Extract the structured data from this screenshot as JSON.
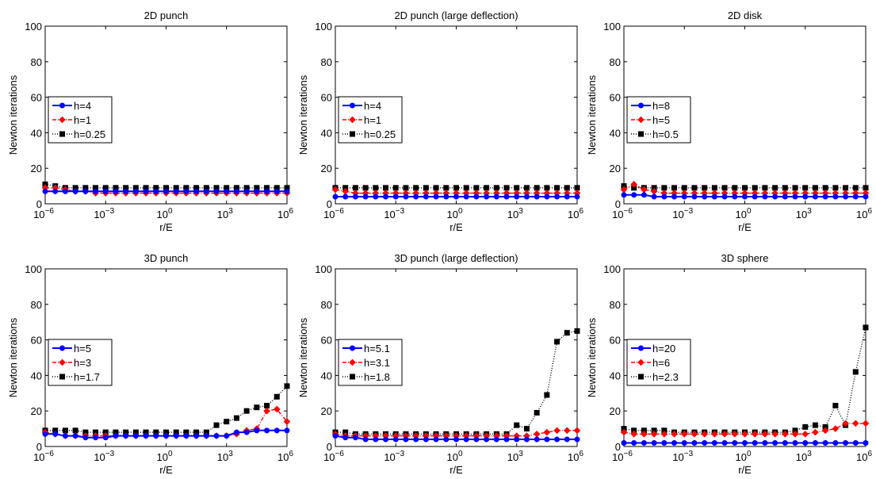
{
  "figure": {
    "background": "#ffffff",
    "series_styles": [
      {
        "color": "#0000ff",
        "marker": "circle",
        "line": "solid"
      },
      {
        "color": "#ff0000",
        "marker": "diamond",
        "line": "dashdot"
      },
      {
        "color": "#000000",
        "marker": "square",
        "line": "dotted"
      }
    ]
  },
  "chart_data": [
    {
      "type": "line",
      "title": "2D punch",
      "xlabel": "r/E",
      "ylabel": "Newton iterations",
      "xscale": "log",
      "xlim": [
        1e-06,
        1000000.0
      ],
      "ylim": [
        0,
        100
      ],
      "yticks": [
        "0",
        "20",
        "40",
        "60",
        "80",
        "100"
      ],
      "xticks": [
        {
          "base": "10",
          "exp": "−6"
        },
        {
          "base": "10",
          "exp": "−3"
        },
        {
          "base": "10",
          "exp": "0"
        },
        {
          "base": "10",
          "exp": "3"
        },
        {
          "base": "10",
          "exp": "6"
        }
      ],
      "legend": "left",
      "x": [
        1e-06,
        3.16e-06,
        1e-05,
        3.16e-05,
        0.0001,
        0.000316,
        0.001,
        0.00316,
        0.01,
        0.0316,
        0.1,
        0.316,
        1,
        3.16,
        10,
        31.6,
        100,
        316,
        1000,
        3160,
        10000.0,
        31600.0,
        100000.0,
        316000.0,
        1000000.0
      ],
      "series": [
        {
          "name": "h=4",
          "values": [
            7,
            7,
            7,
            7,
            7,
            7,
            7,
            7,
            7,
            7,
            7,
            7,
            7,
            7,
            7,
            7,
            7,
            7,
            7,
            7,
            7,
            7,
            7,
            7,
            7
          ]
        },
        {
          "name": "h=1",
          "values": [
            9,
            9,
            8,
            7,
            7,
            6,
            6,
            6,
            6,
            6,
            6,
            6,
            6,
            6,
            6,
            6,
            6,
            6,
            6,
            6,
            6,
            6,
            6,
            6,
            6
          ]
        },
        {
          "name": "h=0.25",
          "values": [
            11,
            10,
            9,
            9,
            9,
            9,
            9,
            9,
            9,
            9,
            9,
            9,
            9,
            9,
            9,
            9,
            9,
            9,
            9,
            9,
            9,
            9,
            9,
            9,
            9
          ]
        }
      ]
    },
    {
      "type": "line",
      "title": "2D punch (large deflection)",
      "xlabel": "r/E",
      "ylabel": "Newton iterations",
      "xscale": "log",
      "xlim": [
        1e-06,
        1000000.0
      ],
      "ylim": [
        0,
        100
      ],
      "yticks": [
        "0",
        "20",
        "40",
        "60",
        "80",
        "100"
      ],
      "xticks": [
        {
          "base": "10",
          "exp": "−6"
        },
        {
          "base": "10",
          "exp": "−3"
        },
        {
          "base": "10",
          "exp": "0"
        },
        {
          "base": "10",
          "exp": "3"
        },
        {
          "base": "10",
          "exp": "6"
        }
      ],
      "legend": "left",
      "x": [
        1e-06,
        3.16e-06,
        1e-05,
        3.16e-05,
        0.0001,
        0.000316,
        0.001,
        0.00316,
        0.01,
        0.0316,
        0.1,
        0.316,
        1,
        3.16,
        10,
        31.6,
        100,
        316,
        1000,
        3160,
        10000.0,
        31600.0,
        100000.0,
        316000.0,
        1000000.0
      ],
      "series": [
        {
          "name": "h=4",
          "values": [
            4,
            4,
            4,
            4,
            4,
            4,
            4,
            4,
            4,
            4,
            4,
            4,
            4,
            4,
            4,
            4,
            4,
            4,
            4,
            4,
            4,
            4,
            4,
            4,
            4
          ]
        },
        {
          "name": "h=1",
          "values": [
            8,
            7,
            6,
            6,
            6,
            6,
            6,
            6,
            6,
            6,
            6,
            6,
            6,
            6,
            6,
            6,
            6,
            6,
            6,
            6,
            6,
            6,
            6,
            6,
            6
          ]
        },
        {
          "name": "h=0.25",
          "values": [
            9,
            9,
            9,
            9,
            9,
            9,
            9,
            9,
            9,
            9,
            9,
            9,
            9,
            9,
            9,
            9,
            9,
            9,
            9,
            9,
            9,
            9,
            9,
            9,
            9
          ]
        }
      ]
    },
    {
      "type": "line",
      "title": "2D disk",
      "xlabel": "r/E",
      "ylabel": "Newton iterations",
      "xscale": "log",
      "xlim": [
        1e-06,
        1000000.0
      ],
      "ylim": [
        0,
        100
      ],
      "yticks": [
        "0",
        "20",
        "40",
        "60",
        "80",
        "100"
      ],
      "xticks": [
        {
          "base": "10",
          "exp": "−6"
        },
        {
          "base": "10",
          "exp": "−3"
        },
        {
          "base": "10",
          "exp": "0"
        },
        {
          "base": "10",
          "exp": "3"
        },
        {
          "base": "10",
          "exp": "6"
        }
      ],
      "legend": "left",
      "x": [
        1e-06,
        3.16e-06,
        1e-05,
        3.16e-05,
        0.0001,
        0.000316,
        0.001,
        0.00316,
        0.01,
        0.0316,
        0.1,
        0.316,
        1,
        3.16,
        10,
        31.6,
        100,
        316,
        1000,
        3160,
        10000.0,
        31600.0,
        100000.0,
        316000.0,
        1000000.0
      ],
      "series": [
        {
          "name": "h=8",
          "values": [
            5,
            5,
            5,
            4,
            4,
            4,
            4,
            4,
            4,
            4,
            4,
            4,
            4,
            4,
            4,
            4,
            4,
            4,
            4,
            4,
            4,
            4,
            4,
            4,
            4
          ]
        },
        {
          "name": "h=5",
          "values": [
            8,
            11,
            8,
            7,
            6,
            6,
            6,
            6,
            6,
            6,
            6,
            6,
            6,
            6,
            6,
            6,
            6,
            6,
            6,
            6,
            6,
            6,
            6,
            6,
            6
          ]
        },
        {
          "name": "h=0.5",
          "values": [
            10,
            9,
            9,
            9,
            9,
            9,
            9,
            9,
            9,
            9,
            9,
            9,
            9,
            9,
            9,
            9,
            9,
            9,
            9,
            9,
            9,
            9,
            9,
            9,
            9
          ]
        }
      ]
    },
    {
      "type": "line",
      "title": "3D punch",
      "xlabel": "r/E",
      "ylabel": "Newton iterations",
      "xscale": "log",
      "xlim": [
        1e-06,
        1000000.0
      ],
      "ylim": [
        0,
        100
      ],
      "yticks": [
        "0",
        "20",
        "40",
        "60",
        "80",
        "100"
      ],
      "xticks": [
        {
          "base": "10",
          "exp": "−6"
        },
        {
          "base": "10",
          "exp": "−3"
        },
        {
          "base": "10",
          "exp": "0"
        },
        {
          "base": "10",
          "exp": "3"
        },
        {
          "base": "10",
          "exp": "6"
        }
      ],
      "legend": "left",
      "x": [
        1e-06,
        3.16e-06,
        1e-05,
        3.16e-05,
        0.0001,
        0.000316,
        0.001,
        0.00316,
        0.01,
        0.0316,
        0.1,
        0.316,
        1,
        3.16,
        10,
        31.6,
        100,
        316,
        1000,
        3160,
        10000.0,
        31600.0,
        100000.0,
        316000.0,
        1000000.0
      ],
      "series": [
        {
          "name": "h=5",
          "values": [
            7,
            7,
            6,
            6,
            5,
            5,
            5,
            6,
            6,
            6,
            6,
            6,
            6,
            6,
            6,
            6,
            6,
            6,
            6,
            8,
            8,
            9,
            9,
            9,
            9
          ]
        },
        {
          "name": "h=3",
          "values": [
            8,
            7,
            6,
            6,
            6,
            6,
            6,
            6,
            6,
            6,
            6,
            6,
            6,
            6,
            6,
            6,
            6,
            6,
            6,
            7,
            9,
            10,
            20,
            21,
            14
          ]
        },
        {
          "name": "h=1.7",
          "values": [
            9,
            9,
            9,
            9,
            8,
            8,
            8,
            8,
            8,
            8,
            8,
            8,
            8,
            8,
            8,
            8,
            8,
            12,
            14,
            16,
            20,
            22,
            23,
            28,
            34
          ]
        }
      ]
    },
    {
      "type": "line",
      "title": "3D punch (large deflection)",
      "xlabel": "r/E",
      "ylabel": "Newton iterations",
      "xscale": "log",
      "xlim": [
        1e-06,
        1000000.0
      ],
      "ylim": [
        0,
        100
      ],
      "yticks": [
        "0",
        "20",
        "40",
        "60",
        "80",
        "100"
      ],
      "xticks": [
        {
          "base": "10",
          "exp": "−6"
        },
        {
          "base": "10",
          "exp": "−3"
        },
        {
          "base": "10",
          "exp": "0"
        },
        {
          "base": "10",
          "exp": "3"
        },
        {
          "base": "10",
          "exp": "6"
        }
      ],
      "legend": "left",
      "x": [
        1e-06,
        3.16e-06,
        1e-05,
        3.16e-05,
        0.0001,
        0.000316,
        0.001,
        0.00316,
        0.01,
        0.0316,
        0.1,
        0.316,
        1,
        3.16,
        10,
        31.6,
        100,
        316,
        1000,
        3160,
        10000.0,
        31600.0,
        100000.0,
        316000.0,
        1000000.0
      ],
      "series": [
        {
          "name": "h=5.1",
          "values": [
            6,
            5,
            5,
            4,
            4,
            4,
            4,
            4,
            4,
            4,
            4,
            4,
            4,
            4,
            4,
            4,
            4,
            4,
            4,
            4,
            4,
            4,
            4,
            4,
            4
          ]
        },
        {
          "name": "h=3.1",
          "values": [
            7,
            6,
            6,
            6,
            6,
            6,
            6,
            6,
            6,
            6,
            6,
            6,
            6,
            6,
            6,
            6,
            6,
            6,
            6,
            6,
            7,
            8,
            9,
            9,
            9
          ]
        },
        {
          "name": "h=1.8",
          "values": [
            8,
            8,
            7,
            7,
            7,
            7,
            7,
            7,
            7,
            7,
            7,
            7,
            7,
            7,
            7,
            7,
            7,
            7,
            12,
            10,
            19,
            29,
            59,
            64,
            65
          ]
        }
      ]
    },
    {
      "type": "line",
      "title": "3D sphere",
      "xlabel": "r/E",
      "ylabel": "Newton iterations",
      "xscale": "log",
      "xlim": [
        1e-06,
        1000000.0
      ],
      "ylim": [
        0,
        100
      ],
      "yticks": [
        "0",
        "20",
        "40",
        "60",
        "80",
        "100"
      ],
      "xticks": [
        {
          "base": "10",
          "exp": "−6"
        },
        {
          "base": "10",
          "exp": "−3"
        },
        {
          "base": "10",
          "exp": "0"
        },
        {
          "base": "10",
          "exp": "3"
        },
        {
          "base": "10",
          "exp": "6"
        }
      ],
      "legend": "left",
      "x": [
        1e-06,
        3.16e-06,
        1e-05,
        3.16e-05,
        0.0001,
        0.000316,
        0.001,
        0.00316,
        0.01,
        0.0316,
        0.1,
        0.316,
        1,
        3.16,
        10,
        31.6,
        100,
        316,
        1000,
        3160,
        10000.0,
        31600.0,
        100000.0,
        316000.0,
        1000000.0
      ],
      "series": [
        {
          "name": "h=20",
          "values": [
            2,
            2,
            2,
            2,
            2,
            2,
            2,
            2,
            2,
            2,
            2,
            2,
            2,
            2,
            2,
            2,
            2,
            2,
            2,
            2,
            2,
            2,
            2,
            2,
            2
          ]
        },
        {
          "name": "h=6",
          "values": [
            8,
            7,
            7,
            7,
            7,
            7,
            7,
            7,
            7,
            7,
            7,
            7,
            7,
            7,
            7,
            7,
            7,
            7,
            7,
            8,
            9,
            10,
            13,
            13,
            13
          ]
        },
        {
          "name": "h=2.3",
          "values": [
            10,
            9,
            9,
            9,
            9,
            8,
            8,
            8,
            8,
            8,
            8,
            8,
            8,
            8,
            8,
            8,
            8,
            9,
            11,
            12,
            11,
            23,
            12,
            42,
            67
          ]
        }
      ]
    }
  ]
}
